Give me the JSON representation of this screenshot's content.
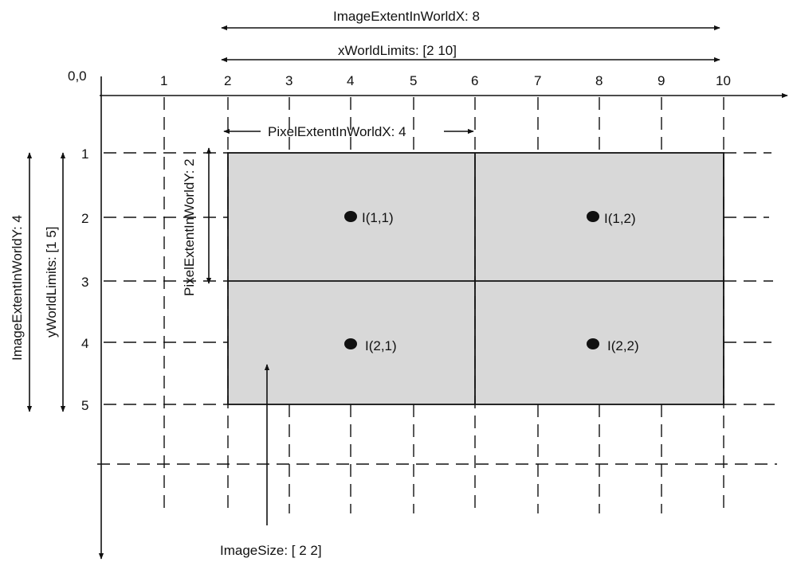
{
  "origin_label": "0,0",
  "x_tick_labels": [
    "1",
    "2",
    "3",
    "4",
    "5",
    "6",
    "7",
    "8",
    "9",
    "10"
  ],
  "y_tick_labels": [
    "1",
    "2",
    "3",
    "4",
    "5"
  ],
  "annotations": {
    "image_extent_x": "ImageExtentInWorldX: 8",
    "x_world_limits": "xWorldLimits: [2 10]",
    "pixel_extent_x": "PixelExtentInWorldX: 4",
    "pixel_extent_y": "PixelExtentInWorldY: 2",
    "y_world_limits": "yWorldLimits: [1 5]",
    "image_extent_y": "ImageExtentInWorldY: 4",
    "image_size": "ImageSize: [ 2 2]"
  },
  "pixels": [
    {
      "label": "I(1,1)"
    },
    {
      "label": "I(1,2)"
    },
    {
      "label": "I(2,1)"
    },
    {
      "label": "I(2,2)"
    }
  ],
  "colors": {
    "image_fill": "#d8d8d8",
    "line": "#111111"
  }
}
